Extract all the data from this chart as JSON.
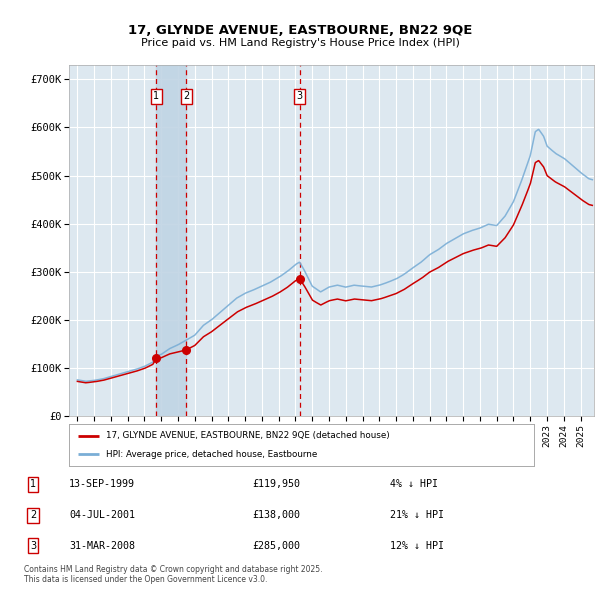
{
  "title": "17, GLYNDE AVENUE, EASTBOURNE, BN22 9QE",
  "subtitle": "Price paid vs. HM Land Registry's House Price Index (HPI)",
  "legend_label_red": "17, GLYNDE AVENUE, EASTBOURNE, BN22 9QE (detached house)",
  "legend_label_blue": "HPI: Average price, detached house, Eastbourne",
  "footer": "Contains HM Land Registry data © Crown copyright and database right 2025.\nThis data is licensed under the Open Government Licence v3.0.",
  "transactions": [
    {
      "num": 1,
      "date": "13-SEP-1999",
      "price": 119950,
      "pct": "4%",
      "dir": "↓"
    },
    {
      "num": 2,
      "date": "04-JUL-2001",
      "price": 138000,
      "pct": "21%",
      "dir": "↓"
    },
    {
      "num": 3,
      "date": "31-MAR-2008",
      "price": 285000,
      "pct": "12%",
      "dir": "↓"
    }
  ],
  "transaction_dates_num": [
    1999.708,
    2001.503,
    2008.247
  ],
  "transaction_prices": [
    119950,
    138000,
    285000
  ],
  "color_red": "#cc0000",
  "color_blue": "#7aaed6",
  "color_dashed": "#cc0000",
  "background_plot": "#dde8f0",
  "background_fig": "#ffffff",
  "grid_color": "#ffffff",
  "ylim": [
    0,
    730000
  ],
  "yticks": [
    0,
    100000,
    200000,
    300000,
    400000,
    500000,
    600000,
    700000
  ],
  "ylabel_labels": [
    "£0",
    "£100K",
    "£200K",
    "£300K",
    "£400K",
    "£500K",
    "£600K",
    "£700K"
  ],
  "xlim_start": 1994.5,
  "xlim_end": 2025.8,
  "shade_pairs": [
    [
      1999.708,
      2001.503
    ]
  ],
  "shade_color": "#c0d4e4"
}
